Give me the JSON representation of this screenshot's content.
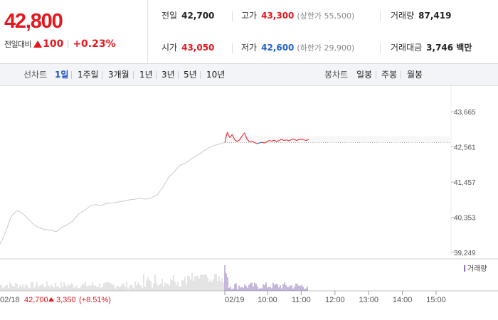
{
  "quote": {
    "price": "42,800",
    "change_label": "전일대비",
    "change_value": "100",
    "change_rate": "+0.23%",
    "prev_close_label": "전일",
    "prev_close": "42,700",
    "open_label": "시가",
    "open": "43,050",
    "high_label": "고가",
    "high": "43,300",
    "upper_limit": "(상한가 55,500)",
    "low_label": "저가",
    "low": "42,600",
    "lower_limit": "(하한가 29,900)",
    "volume_label": "거래량",
    "volume": "87,419",
    "amount_label": "거래대금",
    "amount": "3,746 백만"
  },
  "tabs": {
    "line_title": "선차트",
    "line_periods": [
      "1일",
      "1주일",
      "3개월",
      "1년",
      "3년",
      "5년",
      "10년"
    ],
    "active": "1일",
    "candle_title": "봉차트",
    "candle_periods": [
      "일봉",
      "주봉",
      "월봉"
    ]
  },
  "colors": {
    "up": "#e5161d",
    "down": "#1f5fd1",
    "prev_day": "#c9c9c9",
    "active_tab": "#1d4fc4"
  },
  "chart_data": {
    "type": "line",
    "price_ticks": [
      "43,665",
      "42,561",
      "41,457",
      "40,353",
      "39,249"
    ],
    "volume_legend": "거래량",
    "time_ticks": [
      "10:00",
      "11:00",
      "12:00",
      "13:00",
      "14:00",
      "15:00"
    ],
    "prev_day_date": "02/18",
    "prev_day_close": "42,700",
    "prev_day_change": "3,350",
    "prev_day_rate": "(+8.51%)",
    "today_date": "02/19",
    "prev_close_value": 42700,
    "ylim": [
      39249,
      43665
    ],
    "prev_day_series": [
      39500,
      39900,
      40380,
      40560,
      40480,
      40300,
      40120,
      40020,
      39970,
      39950,
      39900,
      40030,
      40120,
      40240,
      40460,
      40560,
      40700,
      40750,
      40720,
      40790,
      40800,
      40830,
      40860,
      40900,
      40920,
      40950,
      40920,
      40970,
      41060,
      41300,
      41600,
      41780,
      41980,
      42050,
      42180,
      42280,
      42400,
      42520,
      42600,
      42650,
      42700
    ],
    "today_series": [
      42700,
      43020,
      42850,
      42950,
      42780,
      42730,
      42780,
      42900,
      43000,
      42800,
      42720,
      42730,
      42700,
      42660,
      42680,
      42700,
      42680,
      42720,
      42760,
      42740,
      42770,
      42730,
      42760,
      42800,
      42760,
      42780,
      42750,
      42790,
      42800,
      42760,
      42790,
      42800,
      42780,
      42760,
      42800
    ]
  }
}
